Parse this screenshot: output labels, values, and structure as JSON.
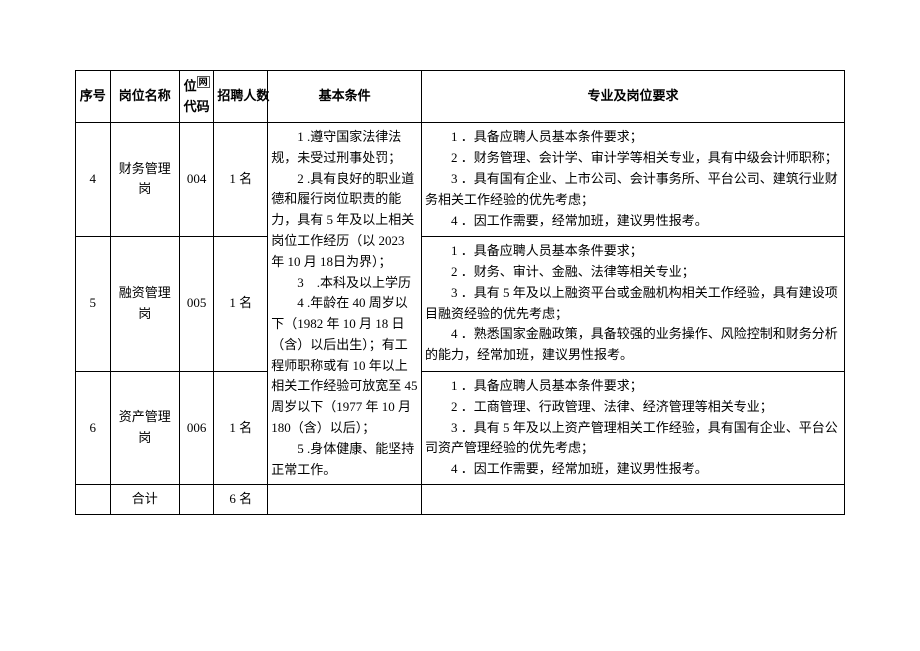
{
  "header": {
    "seq": "序号",
    "name": "岗位名称",
    "code_top": "位",
    "code_sup": "网",
    "code_bottom": "代码",
    "count": "招聘人数",
    "basic": "基本条件",
    "req": "专业及岗位要求"
  },
  "rows": [
    {
      "seq": "4",
      "name": "财务管理岗",
      "code": "004",
      "count": "1 名",
      "req_lines": [
        "　　1 ．具备应聘人员基本条件要求；",
        "　　2 ．财务管理、会计学、审计学等相关专业，具有中级会计师职称；",
        "　　3 ．具有国有企业、上市公司、会计事务所、平台公司、建筑行业财务相关工作经验的优先考虑；",
        "　　4 ．因工作需要，经常加班，建议男性报考。"
      ]
    },
    {
      "seq": "5",
      "name": "融资管理岗",
      "code": "005",
      "count": "1 名",
      "req_lines": [
        "　　1 ．具备应聘人员基本条件要求；",
        "　　2 ．财务、审计、金融、法律等相关专业；",
        "　　3 ．具有 5 年及以上融资平台或金融机构相关工作经验，具有建设项目融资经验的优先考虑；",
        "　　4 ．熟悉国家金融政策，具备较强的业务操作、风险控制和财务分析的能力，经常加班，建议男性报考。"
      ]
    },
    {
      "seq": "6",
      "name": "资产管理岗",
      "code": "006",
      "count": "1 名",
      "req_lines": [
        "　　1 ．具备应聘人员基本条件要求；",
        "　　2 ．工商管理、行政管理、法律、经济管理等相关专业；",
        "　　3 ．具有 5 年及以上资产管理相关工作经验，具有国有企业、平台公司资产管理经验的优先考虑；",
        "　　4 ．因工作需要，经常加班，建议男性报考。"
      ]
    }
  ],
  "basic_lines": [
    "　　1 .遵守国家法律法规，未受过刑事处罚；",
    "　　2 .具有良好的职业道德和履行岗位职责的能力，具有 5 年及以上相关岗位工作经历（以 2023 年 10 月 18日为界）；",
    "　　3　.本科及以上学历",
    "　　4 .年龄在 40 周岁以下（1982 年 10 月 18 日（含）以后出生）；有工程师职称或有 10 年以上相关工作经验可放宽至 45 周岁以下（1977 年 10 月 180（含）以后）；",
    "　　5 .身体健康、能坚持正常工作。"
  ],
  "total": {
    "label": "合计",
    "count": "6 名"
  }
}
